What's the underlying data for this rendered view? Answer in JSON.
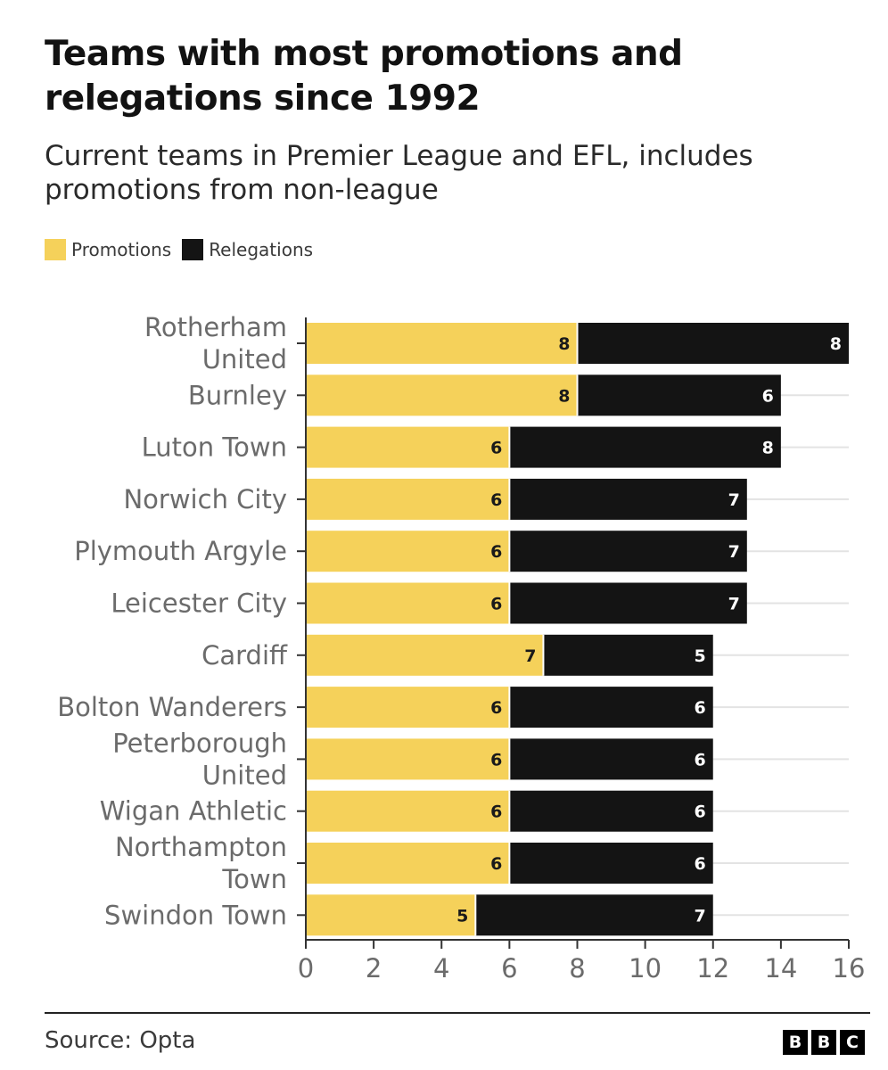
{
  "header": {
    "title": "Teams with most promotions and relegations since 1992",
    "subtitle": "Current teams in Premier League and EFL, includes promotions from non-league"
  },
  "legend": {
    "promotions": "Promotions",
    "relegations": "Relegations"
  },
  "colors": {
    "promotions": "#f5d15a",
    "relegations": "#141414",
    "grid": "#e3e3e3",
    "axis": "#333333",
    "label": "#6b6b6b"
  },
  "chart_data": {
    "type": "bar",
    "orientation": "horizontal",
    "stacked": true,
    "title": "Teams with most promotions and relegations since 1992",
    "subtitle": "Current teams in Premier League and EFL, includes promotions from non-league",
    "categories": [
      "Rotherham United",
      "Burnley",
      "Luton Town",
      "Norwich City",
      "Plymouth Argyle",
      "Leicester City",
      "Cardiff",
      "Bolton Wanderers",
      "Peterborough United",
      "Wigan Athletic",
      "Northampton Town",
      "Swindon Town"
    ],
    "series": [
      {
        "name": "Promotions",
        "values": [
          8,
          8,
          6,
          6,
          6,
          6,
          7,
          6,
          6,
          6,
          6,
          5
        ]
      },
      {
        "name": "Relegations",
        "values": [
          8,
          6,
          8,
          7,
          7,
          7,
          5,
          6,
          6,
          6,
          6,
          7
        ]
      }
    ],
    "xlim": [
      0,
      16
    ],
    "xticks": [
      0,
      2,
      4,
      6,
      8,
      10,
      12,
      14,
      16
    ],
    "xlabel": "",
    "ylabel": "",
    "legend_position": "top-left",
    "grid": true
  },
  "footer": {
    "source": "Source: Opta",
    "logo": [
      "B",
      "B",
      "C"
    ]
  }
}
